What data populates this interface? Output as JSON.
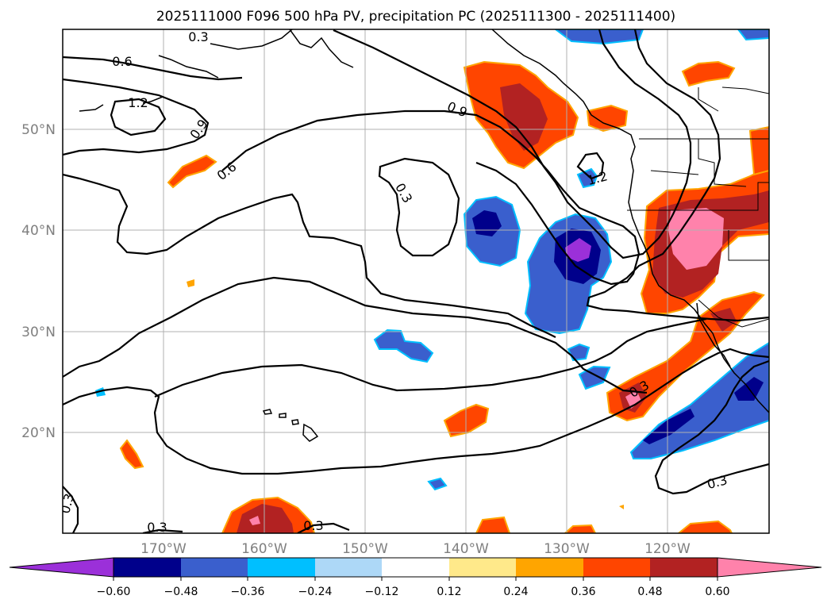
{
  "title": "2025111000 F096 500 hPa PV, precipitation PC (2025111300 - 2025111400)",
  "map": {
    "lon_ticks": [
      "170°W",
      "160°W",
      "150°W",
      "140°W",
      "130°W",
      "120°W"
    ],
    "lat_ticks": [
      "50°N",
      "40°N",
      "30°N",
      "20°N"
    ],
    "lon_range": [
      -180,
      -110
    ],
    "lat_range": [
      10,
      60
    ]
  },
  "contour_labels": [
    {
      "id": "c1",
      "text": "0.3"
    },
    {
      "id": "c2",
      "text": "0.6"
    },
    {
      "id": "c3",
      "text": "1.2"
    },
    {
      "id": "c4",
      "text": "0.9"
    },
    {
      "id": "c5",
      "text": "0.6"
    },
    {
      "id": "c6",
      "text": "0.9"
    },
    {
      "id": "c7",
      "text": "0.3"
    },
    {
      "id": "c8",
      "text": "1.2"
    },
    {
      "id": "c9",
      "text": "0.3"
    },
    {
      "id": "c10",
      "text": "0.3"
    },
    {
      "id": "c11",
      "text": "0.3"
    },
    {
      "id": "c12",
      "text": "0.3"
    },
    {
      "id": "c13",
      "text": "0.3"
    }
  ],
  "colorbar": {
    "ticks": [
      "−0.60",
      "−0.48",
      "−0.36",
      "−0.24",
      "−0.12",
      "0.12",
      "0.24",
      "0.36",
      "0.48",
      "0.60"
    ],
    "colors": [
      "#9b30d9",
      "#00008b",
      "#3a5fcd",
      "#00bfff",
      "#add8f7",
      "#ffffff",
      "#ffe98a",
      "#ffa500",
      "#ff4500",
      "#b22222",
      "#ff82ab"
    ]
  },
  "colors": {
    "purple": "#9b30d9",
    "navy": "#00008b",
    "blue": "#3a5fcd",
    "cyan": "#00bfff",
    "lightblue": "#add8f7",
    "yellow": "#ffe98a",
    "orange": "#ffa500",
    "redorange": "#ff4500",
    "firebrick": "#b22222",
    "pink": "#ff82ab"
  }
}
